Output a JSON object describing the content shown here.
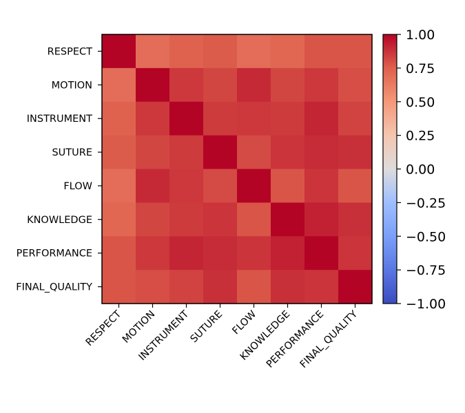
{
  "chart_data": {
    "type": "heatmap",
    "title": "",
    "xlabel": "",
    "ylabel": "",
    "categories": [
      "RESPECT",
      "MOTION",
      "INSTRUMENT",
      "SUTURE",
      "FLOW",
      "KNOWLEDGE",
      "PERFORMANCE",
      "FINAL_QUALITY"
    ],
    "values": [
      [
        1.0,
        0.69,
        0.74,
        0.76,
        0.69,
        0.72,
        0.78,
        0.78
      ],
      [
        0.69,
        1.0,
        0.86,
        0.82,
        0.9,
        0.82,
        0.86,
        0.8
      ],
      [
        0.74,
        0.86,
        1.0,
        0.85,
        0.86,
        0.85,
        0.91,
        0.83
      ],
      [
        0.76,
        0.82,
        0.85,
        1.0,
        0.81,
        0.87,
        0.89,
        0.88
      ],
      [
        0.69,
        0.9,
        0.86,
        0.81,
        1.0,
        0.78,
        0.87,
        0.78
      ],
      [
        0.72,
        0.82,
        0.85,
        0.87,
        0.78,
        1.0,
        0.92,
        0.88
      ],
      [
        0.78,
        0.86,
        0.91,
        0.89,
        0.87,
        0.92,
        1.0,
        0.87
      ],
      [
        0.78,
        0.8,
        0.83,
        0.88,
        0.78,
        0.88,
        0.87,
        1.0
      ]
    ],
    "colormap": "coolwarm",
    "vmin": -1.0,
    "vmax": 1.0,
    "colorbar_ticks": [
      "1.00",
      "0.75",
      "0.50",
      "0.25",
      "0.00",
      "−0.25",
      "−0.50",
      "−0.75",
      "−1.00"
    ],
    "colorbar_tick_values": [
      1.0,
      0.75,
      0.5,
      0.25,
      0.0,
      -0.25,
      -0.5,
      -0.75,
      -1.0
    ],
    "grid": false,
    "legend": "colorbar-right"
  }
}
